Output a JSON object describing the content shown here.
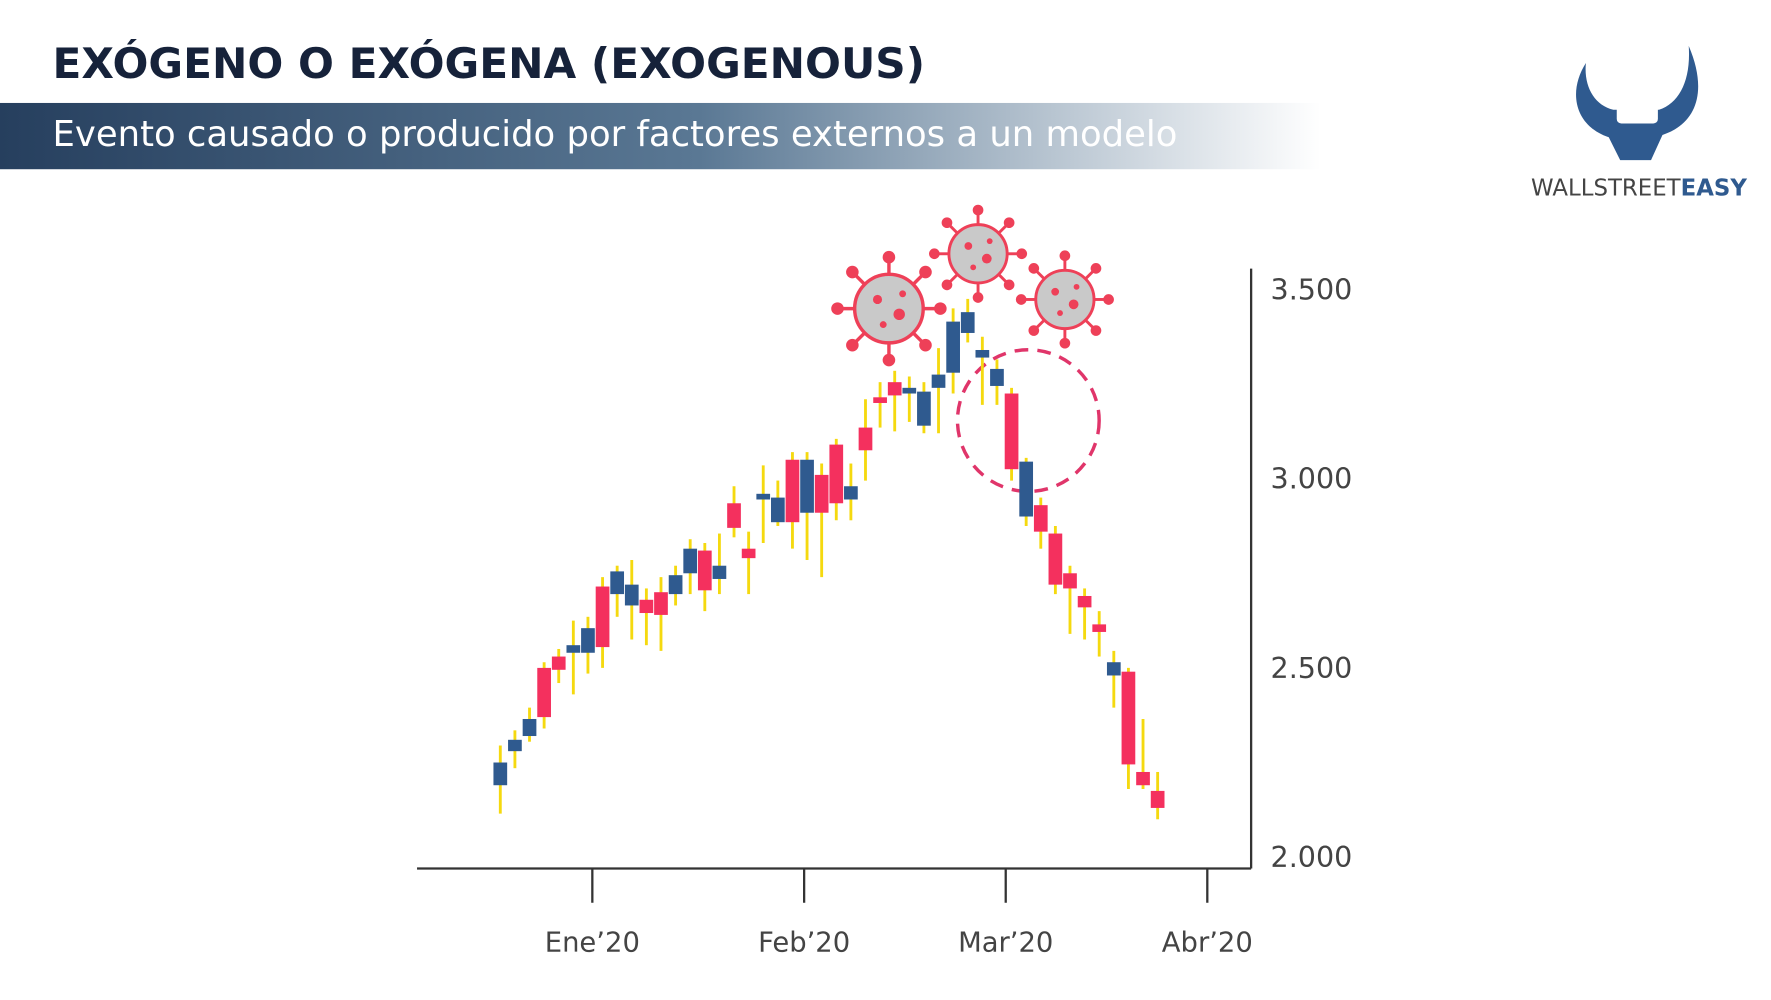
{
  "chart_data": {
    "type": "candlestick",
    "title": "EXÓGENO O EXÓGENA (EXOGENOUS)",
    "subtitle": "Evento causado o producido por factores externos a un modelo",
    "x": [
      0,
      1,
      2,
      3,
      4,
      5,
      6,
      7,
      8,
      9,
      10,
      11,
      12,
      13,
      14,
      15,
      16,
      17,
      18,
      19,
      20,
      21,
      22,
      23,
      24,
      25,
      26,
      27,
      28,
      29,
      30,
      31,
      32,
      33,
      34,
      35,
      36,
      37,
      38,
      39,
      40,
      41,
      42,
      43,
      44,
      45
    ],
    "open": [
      2195,
      2285,
      2325,
      2505,
      2535,
      2545,
      2545,
      2720,
      2700,
      2670,
      2685,
      2705,
      2700,
      2755,
      2815,
      2740,
      2940,
      2820,
      2950,
      2890,
      3055,
      2915,
      3015,
      3095,
      2950,
      3140,
      3220,
      3260,
      3230,
      3145,
      3245,
      3285,
      3390,
      3325,
      3250,
      3230,
      2905,
      2935,
      2860,
      2755,
      2695,
      2620,
      2485,
      2495,
      2230,
      2180
    ],
    "high": [
      2300,
      2340,
      2400,
      2520,
      2555,
      2630,
      2640,
      2745,
      2775,
      2790,
      2715,
      2745,
      2775,
      2845,
      2835,
      2860,
      2985,
      2865,
      3040,
      3000,
      3075,
      3075,
      3045,
      3110,
      3045,
      3215,
      3260,
      3290,
      3275,
      3260,
      3350,
      3455,
      3480,
      3380,
      3320,
      3245,
      3060,
      2955,
      2880,
      2775,
      2715,
      2655,
      2550,
      2505,
      2370,
      2230
    ],
    "low": [
      2120,
      2240,
      2310,
      2345,
      2465,
      2435,
      2490,
      2505,
      2640,
      2580,
      2565,
      2550,
      2670,
      2700,
      2655,
      2700,
      2850,
      2700,
      2835,
      2880,
      2820,
      2790,
      2745,
      2895,
      2895,
      3000,
      3140,
      3130,
      3155,
      3125,
      3125,
      3230,
      3365,
      3200,
      3200,
      3000,
      2880,
      2820,
      2700,
      2595,
      2580,
      2535,
      2400,
      2185,
      2185,
      2105
    ],
    "close": [
      2255,
      2315,
      2370,
      2375,
      2500,
      2565,
      2610,
      2560,
      2760,
      2725,
      2650,
      2645,
      2750,
      2820,
      2710,
      2775,
      2875,
      2795,
      2965,
      2955,
      2890,
      3055,
      2915,
      2940,
      2985,
      3080,
      3205,
      3225,
      3245,
      3235,
      3280,
      3420,
      3445,
      3345,
      3295,
      3030,
      3050,
      2865,
      2725,
      2715,
      2665,
      2600,
      2520,
      2250,
      2195,
      2135
    ],
    "up_color": "#2f5a8f",
    "down_color": "#f4305e",
    "wick_color": "#f5d90f",
    "xlim": [
      -5.7,
      51.4
    ],
    "xticks": [
      {
        "value": 6.3,
        "label": "Ene’20"
      },
      {
        "value": 20.8,
        "label": "Feb’20"
      },
      {
        "value": 34.6,
        "label": "Mar’20"
      },
      {
        "value": 48.4,
        "label": "Abr’20"
      }
    ],
    "ylim": [
      1975,
      3560
    ],
    "yticks": [
      {
        "value": 2000,
        "label": "2.000"
      },
      {
        "value": 2500,
        "label": "2.500"
      },
      {
        "value": 3000,
        "label": "3.000"
      },
      {
        "value": 3500,
        "label": "3.500"
      }
    ]
  },
  "logo": {
    "text_1": "WALLSTREET",
    "text_2": "EASY"
  }
}
